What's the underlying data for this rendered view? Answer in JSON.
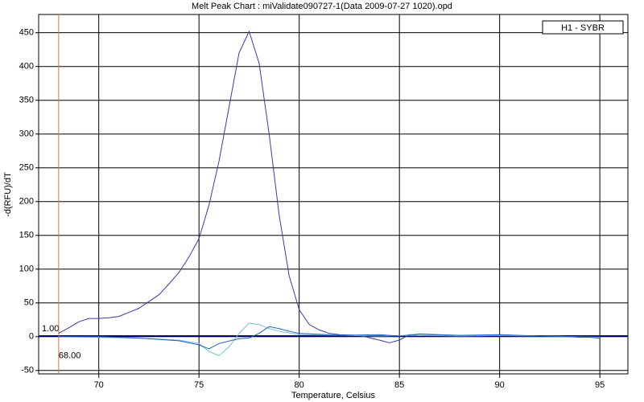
{
  "chart_data": {
    "type": "line",
    "title": "Melt Peak Chart : miValidate090727-1(Data 2009-07-27 1020).opd",
    "x_label": "Temperature, Celsius",
    "y_label": "-d(RFU)/dT",
    "xlim": [
      67,
      96.4
    ],
    "ylim": [
      -55,
      477
    ],
    "xticks": [
      70,
      75,
      80,
      85,
      90,
      95
    ],
    "yticks": [
      -50,
      0,
      50,
      100,
      150,
      200,
      250,
      300,
      350,
      400,
      450
    ],
    "grid": true,
    "legend_position": "upper right",
    "threshold": {
      "value": 1,
      "label": "1.00",
      "color": "#000066"
    },
    "cursor": {
      "value": 68,
      "label": "68.00",
      "color": "#e07030"
    },
    "series": [
      {
        "name": "H1 - SYBR",
        "color": "#3a3aa8",
        "x": [
          68,
          68.5,
          69,
          69.5,
          70,
          70.5,
          71,
          71.5,
          72,
          72.5,
          73,
          73.5,
          74,
          74.5,
          75,
          75.5,
          76,
          76.5,
          77,
          77.5,
          78,
          78.5,
          79,
          79.5,
          80,
          80.5,
          81,
          81.5,
          82,
          83,
          84,
          84.5,
          85,
          85.5,
          86,
          87,
          88,
          89,
          90,
          91,
          92,
          93,
          94,
          95
        ],
        "values": [
          5,
          13,
          22,
          27,
          27,
          28,
          30,
          36,
          42,
          52,
          62,
          78,
          95,
          118,
          145,
          195,
          260,
          340,
          420,
          452,
          405,
          300,
          180,
          90,
          40,
          18,
          10,
          5,
          3,
          2,
          -5,
          -9,
          -5,
          3,
          2,
          2,
          1,
          1,
          2,
          1,
          1,
          1,
          -1,
          0
        ]
      },
      {
        "color": "#70c0e0",
        "x": [
          68,
          70,
          72,
          74,
          75,
          75.5,
          76,
          76.5,
          77,
          77.5,
          78,
          78.5,
          79,
          80,
          82,
          84,
          86,
          88,
          90,
          92,
          94,
          95
        ],
        "values": [
          0,
          -1,
          -2,
          -5,
          -10,
          -22,
          -28,
          -15,
          5,
          20,
          18,
          12,
          8,
          3,
          2,
          1,
          2,
          1,
          2,
          1,
          0,
          -1
        ]
      },
      {
        "color": "#2060c0",
        "x": [
          68,
          70,
          72,
          73,
          74,
          75,
          75.5,
          76,
          77,
          77.5,
          78,
          78.5,
          79,
          79.5,
          80,
          82,
          84,
          85,
          86,
          88,
          90,
          92,
          94,
          95
        ],
        "values": [
          0,
          0,
          -2,
          -4,
          -6,
          -12,
          -18,
          -10,
          -3,
          -2,
          5,
          15,
          12,
          8,
          5,
          2,
          3,
          1,
          4,
          2,
          3,
          1,
          0,
          -2
        ]
      }
    ]
  }
}
